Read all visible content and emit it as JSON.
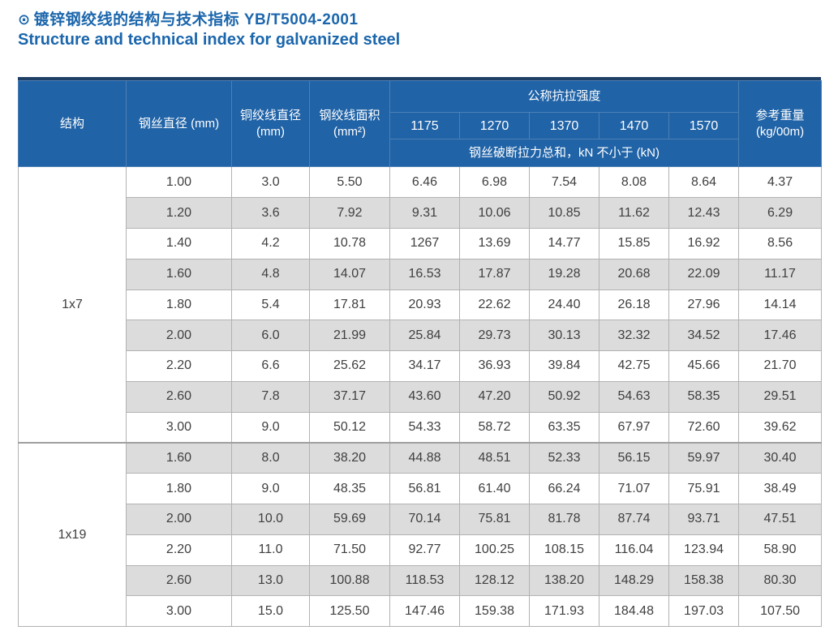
{
  "page": {
    "bullet_icon": "⊙",
    "title_zh": "镀锌钢绞线的结构与技术指标 YB/T5004-2001",
    "title_en": "Structure and technical index for galvanized steel"
  },
  "colors": {
    "title_blue": "#1b66ac",
    "header_bg": "#2063a7",
    "header_border": "#4d80b5",
    "table_top_bar": "#1e3f66",
    "row_alt_bg": "#dcdcdc",
    "row_bg": "#ffffff",
    "body_border": "#b2b2b2",
    "data_text": "#3f3f3f"
  },
  "table": {
    "headers": {
      "structure": "结构",
      "wire_diameter": "钢丝直径 (mm)",
      "strand_diameter": "铜绞线直径 (mm)",
      "strand_area": "钢绞线面积 (mm²)",
      "tensile_strength_group": "公称抗拉强度",
      "strength_grades": [
        "1175",
        "1270",
        "1370",
        "1470",
        "1570"
      ],
      "breaking_force_note": "钢丝破断拉力总和，kN 不小于 (kN)",
      "reference_weight": "参考重量 (kg/00m)"
    },
    "sections": [
      {
        "structure": "1x7",
        "rows": [
          [
            "1.00",
            "3.0",
            "5.50",
            "6.46",
            "6.98",
            "7.54",
            "8.08",
            "8.64",
            "4.37"
          ],
          [
            "1.20",
            "3.6",
            "7.92",
            "9.31",
            "10.06",
            "10.85",
            "11.62",
            "12.43",
            "6.29"
          ],
          [
            "1.40",
            "4.2",
            "10.78",
            "1267",
            "13.69",
            "14.77",
            "15.85",
            "16.92",
            "8.56"
          ],
          [
            "1.60",
            "4.8",
            "14.07",
            "16.53",
            "17.87",
            "19.28",
            "20.68",
            "22.09",
            "11.17"
          ],
          [
            "1.80",
            "5.4",
            "17.81",
            "20.93",
            "22.62",
            "24.40",
            "26.18",
            "27.96",
            "14.14"
          ],
          [
            "2.00",
            "6.0",
            "21.99",
            "25.84",
            "29.73",
            "30.13",
            "32.32",
            "34.52",
            "17.46"
          ],
          [
            "2.20",
            "6.6",
            "25.62",
            "34.17",
            "36.93",
            "39.84",
            "42.75",
            "45.66",
            "21.70"
          ],
          [
            "2.60",
            "7.8",
            "37.17",
            "43.60",
            "47.20",
            "50.92",
            "54.63",
            "58.35",
            "29.51"
          ],
          [
            "3.00",
            "9.0",
            "50.12",
            "54.33",
            "58.72",
            "63.35",
            "67.97",
            "72.60",
            "39.62"
          ]
        ]
      },
      {
        "structure": "1x19",
        "rows": [
          [
            "1.60",
            "8.0",
            "38.20",
            "44.88",
            "48.51",
            "52.33",
            "56.15",
            "59.97",
            "30.40"
          ],
          [
            "1.80",
            "9.0",
            "48.35",
            "56.81",
            "61.40",
            "66.24",
            "71.07",
            "75.91",
            "38.49"
          ],
          [
            "2.00",
            "10.0",
            "59.69",
            "70.14",
            "75.81",
            "81.78",
            "87.74",
            "93.71",
            "47.51"
          ],
          [
            "2.20",
            "11.0",
            "71.50",
            "92.77",
            "100.25",
            "108.15",
            "116.04",
            "123.94",
            "58.90"
          ],
          [
            "2.60",
            "13.0",
            "100.88",
            "118.53",
            "128.12",
            "138.20",
            "148.29",
            "158.38",
            "80.30"
          ],
          [
            "3.00",
            "15.0",
            "125.50",
            "147.46",
            "159.38",
            "171.93",
            "184.48",
            "197.03",
            "107.50"
          ]
        ]
      }
    ]
  }
}
